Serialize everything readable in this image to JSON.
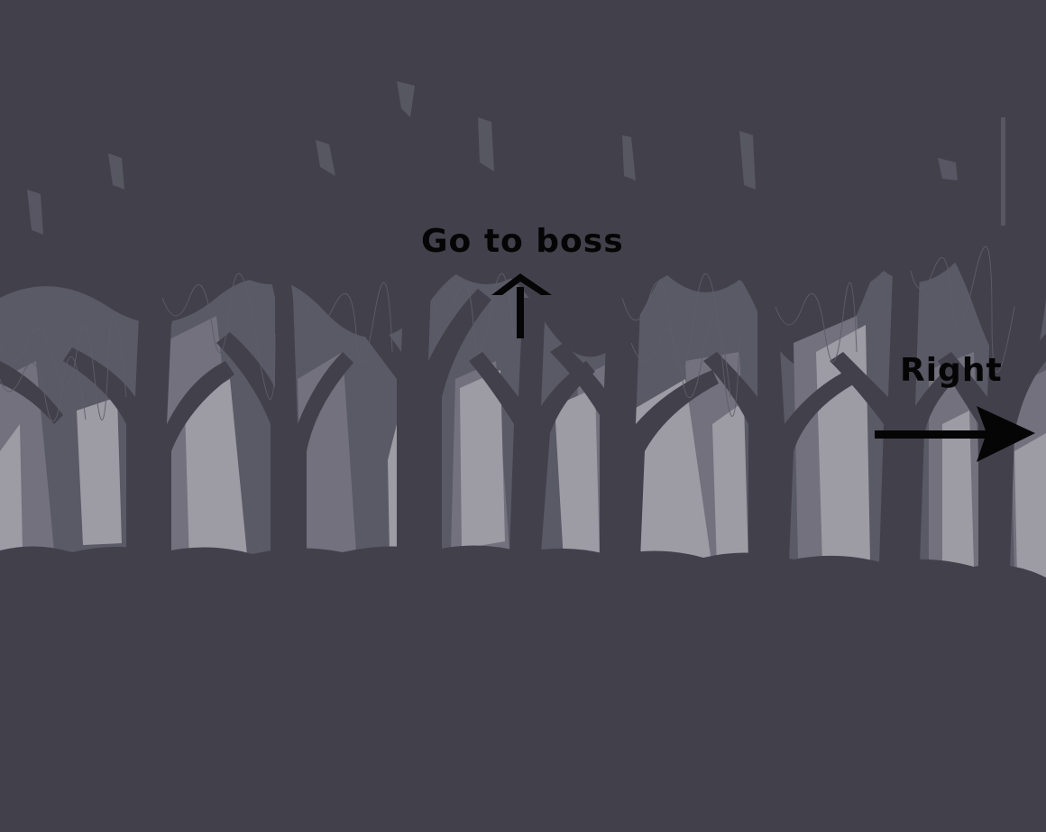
{
  "scene": {
    "name": "forest-level",
    "colors": {
      "sky": "#42404b",
      "ground": "#42404b",
      "trunk": "#42404b",
      "mist_far": "#5a5966",
      "mist_mid": "#72717d",
      "mist_near": "#9d9ca4",
      "text": "#050505"
    }
  },
  "hints": {
    "boss": {
      "label": "Go to boss",
      "arrow": "up-arrow"
    },
    "right": {
      "label": "Right",
      "arrow": "right-arrow"
    }
  }
}
